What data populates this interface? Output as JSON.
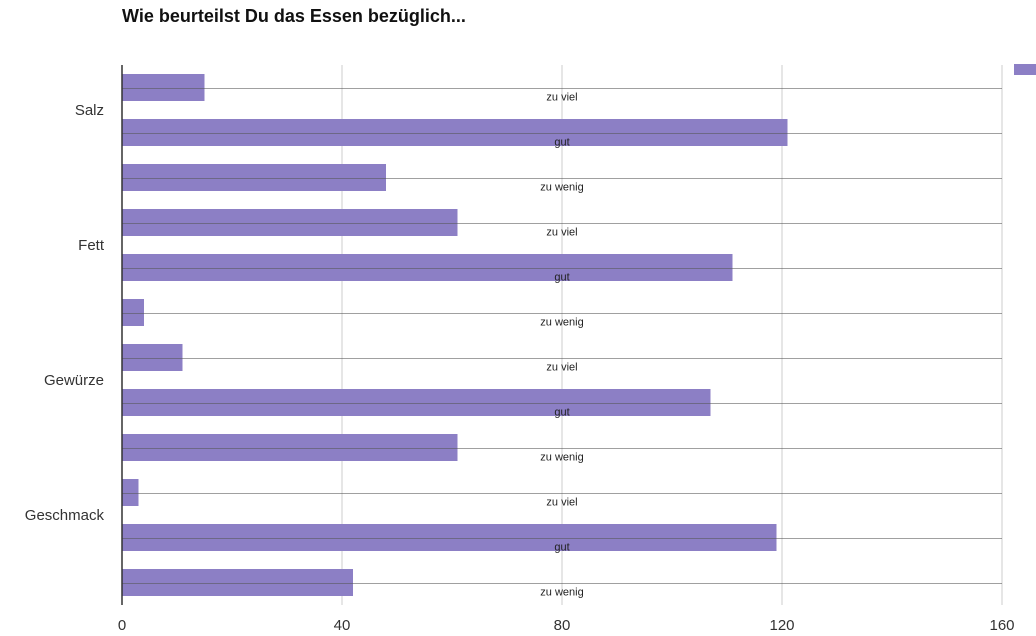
{
  "chart_data": {
    "type": "bar",
    "orientation": "horizontal",
    "title": "Wie beurteilst Du das Essen bezüglich...",
    "xlim": [
      0,
      160
    ],
    "x_ticks": [
      "0",
      "40",
      "80",
      "120",
      "160"
    ],
    "grid": true,
    "legend_position": "top-right",
    "color": "#8c7fc5",
    "groups": [
      {
        "label": "Salz",
        "bars": [
          {
            "label": "zu viel",
            "value": 15
          },
          {
            "label": "gut",
            "value": 121
          },
          {
            "label": "zu wenig",
            "value": 48
          }
        ]
      },
      {
        "label": "Fett",
        "bars": [
          {
            "label": "zu viel",
            "value": 61
          },
          {
            "label": "gut",
            "value": 111
          },
          {
            "label": "zu wenig",
            "value": 4
          }
        ]
      },
      {
        "label": "Gewürze",
        "bars": [
          {
            "label": "zu viel",
            "value": 11
          },
          {
            "label": "gut",
            "value": 107
          },
          {
            "label": "zu wenig",
            "value": 61
          }
        ]
      },
      {
        "label": "Geschmack",
        "bars": [
          {
            "label": "zu viel",
            "value": 3
          },
          {
            "label": "gut",
            "value": 119
          },
          {
            "label": "zu wenig",
            "value": 42
          }
        ]
      }
    ]
  }
}
